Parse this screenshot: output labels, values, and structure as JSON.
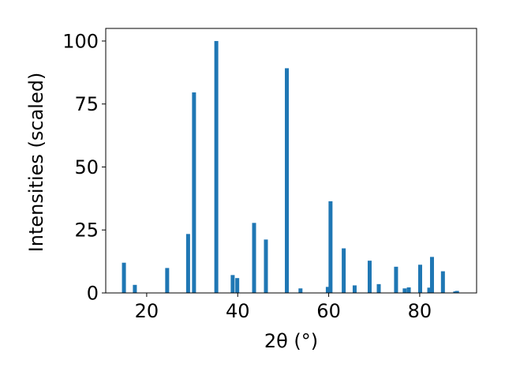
{
  "chart_data": {
    "type": "bar",
    "xlabel": "2θ (°)",
    "ylabel": "Intensities (scaled)",
    "xlim": [
      11,
      92.5
    ],
    "ylim": [
      0,
      105
    ],
    "xticks": [
      20,
      40,
      60,
      80
    ],
    "yticks": [
      0,
      25,
      50,
      75,
      100
    ],
    "xtick_labels": [
      "20",
      "40",
      "60",
      "80"
    ],
    "ytick_labels": [
      "0",
      "25",
      "50",
      "75",
      "100"
    ],
    "grid": false,
    "bar_color": "#1f77b4",
    "x": [
      15.0,
      17.4,
      24.5,
      29.1,
      30.4,
      35.3,
      38.9,
      39.9,
      43.6,
      46.2,
      50.8,
      53.8,
      59.8,
      60.4,
      63.3,
      65.7,
      69.0,
      71.0,
      74.8,
      76.7,
      77.6,
      80.1,
      82.1,
      82.7,
      85.1,
      87.8,
      88.2
    ],
    "values": [
      12.0,
      3.2,
      9.9,
      23.4,
      79.6,
      100.0,
      7.1,
      5.9,
      27.8,
      21.2,
      89.2,
      1.8,
      2.4,
      36.4,
      17.7,
      3.0,
      12.8,
      3.5,
      10.4,
      1.8,
      2.2,
      11.2,
      2.1,
      14.3,
      8.6,
      0.6,
      0.8
    ]
  }
}
